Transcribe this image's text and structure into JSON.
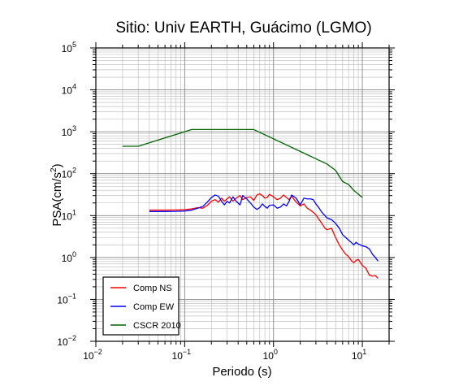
{
  "chart_data": {
    "type": "line",
    "title": "Sitio: Univ EARTH, Guácimo (LGMO)",
    "xlabel": "Periodo (s)",
    "ylabel": {
      "base": "PSA(cm/s",
      "sup": "2",
      "tail": ")"
    },
    "xscale": "log",
    "yscale": "log",
    "xlim": [
      0.01,
      20
    ],
    "ylim": [
      0.01,
      100000
    ],
    "grid": true,
    "legend_position": "bottom-left",
    "x_ticks": [
      {
        "base": "10",
        "exp": "−2",
        "value": 0.01
      },
      {
        "base": "10",
        "exp": "−1",
        "value": 0.1
      },
      {
        "base": "10",
        "exp": "0",
        "value": 1
      },
      {
        "base": "10",
        "exp": "1",
        "value": 10
      }
    ],
    "y_ticks": [
      {
        "base": "10",
        "exp": "−2",
        "value": 0.01
      },
      {
        "base": "10",
        "exp": "−1",
        "value": 0.1
      },
      {
        "base": "10",
        "exp": "0",
        "value": 1
      },
      {
        "base": "10",
        "exp": "1",
        "value": 10
      },
      {
        "base": "10",
        "exp": "2",
        "value": 100
      },
      {
        "base": "10",
        "exp": "3",
        "value": 1000
      },
      {
        "base": "10",
        "exp": "4",
        "value": 10000
      },
      {
        "base": "10",
        "exp": "5",
        "value": 100000
      }
    ],
    "series": [
      {
        "name": "Comp NS",
        "color": "#ff0000",
        "points": [
          [
            0.04,
            13.5
          ],
          [
            0.06,
            13.5
          ],
          [
            0.08,
            13.6
          ],
          [
            0.1,
            13.8
          ],
          [
            0.12,
            14.5
          ],
          [
            0.14,
            15.5
          ],
          [
            0.16,
            15
          ],
          [
            0.18,
            17.5
          ],
          [
            0.2,
            22
          ],
          [
            0.22,
            24
          ],
          [
            0.24,
            21
          ],
          [
            0.26,
            26
          ],
          [
            0.28,
            22
          ],
          [
            0.3,
            25
          ],
          [
            0.32,
            28
          ],
          [
            0.35,
            22
          ],
          [
            0.38,
            26
          ],
          [
            0.42,
            30
          ],
          [
            0.45,
            24
          ],
          [
            0.5,
            27
          ],
          [
            0.55,
            28
          ],
          [
            0.6,
            23
          ],
          [
            0.65,
            31
          ],
          [
            0.7,
            33
          ],
          [
            0.75,
            30
          ],
          [
            0.8,
            26
          ],
          [
            0.85,
            27
          ],
          [
            0.9,
            32
          ],
          [
            1.0,
            28
          ],
          [
            1.1,
            24
          ],
          [
            1.2,
            26
          ],
          [
            1.3,
            31
          ],
          [
            1.4,
            27
          ],
          [
            1.5,
            24
          ],
          [
            1.6,
            29
          ],
          [
            1.8,
            21
          ],
          [
            2.0,
            17
          ],
          [
            2.2,
            19
          ],
          [
            2.4,
            15
          ],
          [
            2.6,
            13.5
          ],
          [
            2.8,
            12
          ],
          [
            3.0,
            10.5
          ],
          [
            3.2,
            8.5
          ],
          [
            3.5,
            6.5
          ],
          [
            3.8,
            5
          ],
          [
            4.0,
            4.6
          ],
          [
            4.5,
            5
          ],
          [
            5.0,
            3
          ],
          [
            5.5,
            2
          ],
          [
            6.0,
            1.5
          ],
          [
            6.5,
            1.2
          ],
          [
            7.0,
            1.05
          ],
          [
            7.5,
            0.85
          ],
          [
            8.0,
            0.75
          ],
          [
            8.5,
            0.85
          ],
          [
            9.0,
            0.9
          ],
          [
            10.0,
            0.65
          ],
          [
            11.0,
            0.55
          ],
          [
            12.0,
            0.38
          ],
          [
            13.0,
            0.36
          ],
          [
            14.0,
            0.37
          ],
          [
            15.0,
            0.32
          ]
        ]
      },
      {
        "name": "Comp EW",
        "color": "#0000ff",
        "points": [
          [
            0.04,
            12.5
          ],
          [
            0.06,
            12.5
          ],
          [
            0.08,
            12.6
          ],
          [
            0.1,
            12.8
          ],
          [
            0.12,
            13.5
          ],
          [
            0.14,
            15
          ],
          [
            0.16,
            16.5
          ],
          [
            0.18,
            21
          ],
          [
            0.2,
            27
          ],
          [
            0.22,
            31
          ],
          [
            0.24,
            29
          ],
          [
            0.26,
            22
          ],
          [
            0.28,
            18
          ],
          [
            0.3,
            22
          ],
          [
            0.32,
            20
          ],
          [
            0.35,
            28
          ],
          [
            0.38,
            22
          ],
          [
            0.42,
            18
          ],
          [
            0.45,
            30
          ],
          [
            0.5,
            25
          ],
          [
            0.55,
            20
          ],
          [
            0.6,
            16
          ],
          [
            0.65,
            14
          ],
          [
            0.7,
            15.5
          ],
          [
            0.75,
            19
          ],
          [
            0.8,
            16.5
          ],
          [
            0.85,
            15
          ],
          [
            0.9,
            17.5
          ],
          [
            1.0,
            18
          ],
          [
            1.1,
            15
          ],
          [
            1.2,
            16
          ],
          [
            1.3,
            19
          ],
          [
            1.4,
            17
          ],
          [
            1.5,
            22
          ],
          [
            1.6,
            31
          ],
          [
            1.8,
            26
          ],
          [
            2.0,
            18
          ],
          [
            2.2,
            26
          ],
          [
            2.4,
            25
          ],
          [
            2.6,
            25
          ],
          [
            2.8,
            24
          ],
          [
            3.0,
            19
          ],
          [
            3.2,
            16
          ],
          [
            3.5,
            12
          ],
          [
            3.8,
            10
          ],
          [
            4.0,
            8.8
          ],
          [
            4.5,
            8
          ],
          [
            5.0,
            6.5
          ],
          [
            5.5,
            5
          ],
          [
            6.0,
            3.5
          ],
          [
            6.5,
            3
          ],
          [
            7.0,
            2.6
          ],
          [
            7.5,
            2.3
          ],
          [
            8.0,
            2
          ],
          [
            8.5,
            2.3
          ],
          [
            9.0,
            2.1
          ],
          [
            10.0,
            1.9
          ],
          [
            11.0,
            1.8
          ],
          [
            12.0,
            1.6
          ],
          [
            13.0,
            1.2
          ],
          [
            14.0,
            1
          ],
          [
            15.0,
            0.82
          ]
        ]
      },
      {
        "name": "CSCR 2010",
        "color": "#006400",
        "points": [
          [
            0.02,
            450
          ],
          [
            0.03,
            450
          ],
          [
            0.12,
            1130
          ],
          [
            0.6,
            1130
          ],
          [
            4.0,
            170
          ],
          [
            5.0,
            120
          ],
          [
            6.0,
            65
          ],
          [
            7.0,
            55
          ],
          [
            8.0,
            40
          ],
          [
            10.0,
            27
          ]
        ]
      }
    ]
  }
}
